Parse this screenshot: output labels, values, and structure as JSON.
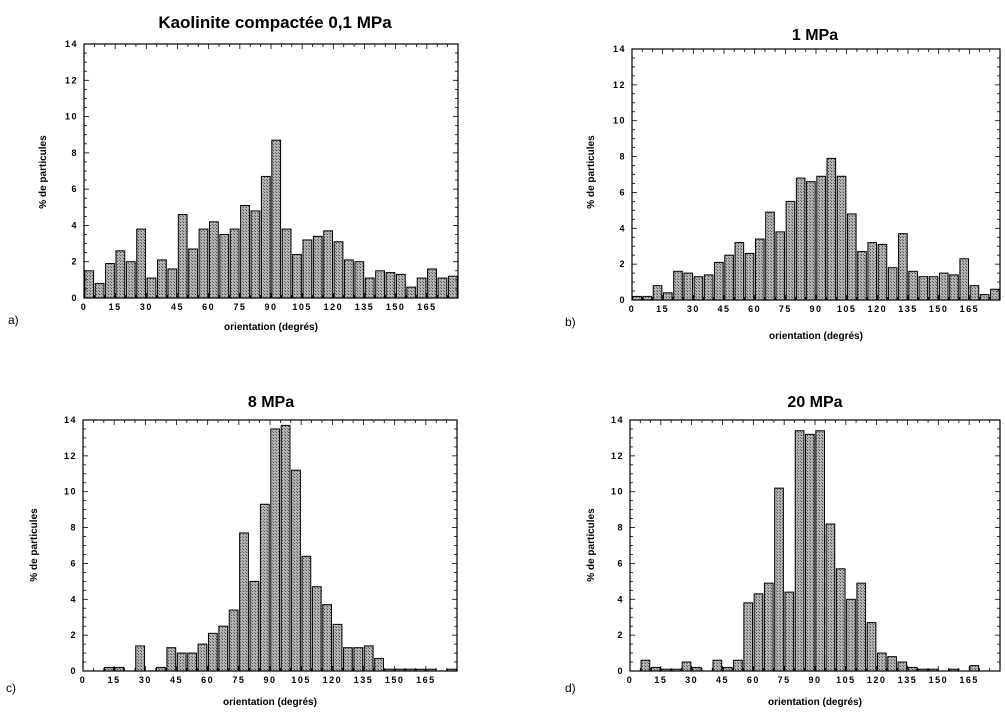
{
  "chart_data": [
    {
      "type": "bar",
      "panel_label": "a)",
      "title": "Kaolinite compactée 0,1 MPa",
      "xlabel": "orientation (degrés)",
      "ylabel": "% de particules",
      "ylim": [
        0,
        14
      ],
      "yticks": [
        "0",
        "2",
        "4",
        "6",
        "8",
        "10",
        "12",
        "14"
      ],
      "xticks": [
        "0",
        "15",
        "30",
        "45",
        "60",
        "75",
        "90",
        "105",
        "120",
        "135",
        "150",
        "165"
      ],
      "bin_width": 5,
      "x": [
        0,
        5,
        10,
        15,
        20,
        25,
        30,
        35,
        40,
        45,
        50,
        55,
        60,
        65,
        70,
        75,
        80,
        85,
        90,
        95,
        100,
        105,
        110,
        115,
        120,
        125,
        130,
        135,
        140,
        145,
        150,
        155,
        160,
        165,
        170,
        175
      ],
      "values": [
        1.5,
        0.8,
        1.9,
        2.6,
        2.0,
        3.8,
        1.1,
        2.1,
        1.6,
        4.6,
        2.7,
        3.8,
        4.2,
        3.5,
        3.8,
        5.1,
        4.8,
        6.7,
        8.7,
        3.8,
        2.4,
        3.2,
        3.4,
        3.7,
        3.1,
        2.1,
        2.0,
        1.1,
        1.5,
        1.4,
        1.3,
        0.6,
        1.1,
        1.6,
        1.1,
        1.2
      ]
    },
    {
      "type": "bar",
      "panel_label": "b)",
      "title": "1 MPa",
      "xlabel": "orientation (degrés)",
      "ylabel": "% de particules",
      "ylim": [
        0,
        14
      ],
      "yticks": [
        "0",
        "2",
        "4",
        "6",
        "8",
        "10",
        "12",
        "14"
      ],
      "xticks": [
        "0",
        "15",
        "30",
        "45",
        "60",
        "75",
        "90",
        "105",
        "120",
        "135",
        "150",
        "165"
      ],
      "bin_width": 5,
      "x": [
        0,
        5,
        10,
        15,
        20,
        25,
        30,
        35,
        40,
        45,
        50,
        55,
        60,
        65,
        70,
        75,
        80,
        85,
        90,
        95,
        100,
        105,
        110,
        115,
        120,
        125,
        130,
        135,
        140,
        145,
        150,
        155,
        160,
        165,
        170,
        175
      ],
      "values": [
        0.2,
        0.2,
        0.8,
        0.4,
        1.6,
        1.5,
        1.3,
        1.4,
        2.1,
        2.5,
        3.2,
        2.6,
        3.4,
        4.9,
        3.8,
        5.5,
        6.8,
        6.6,
        6.9,
        7.9,
        6.9,
        4.8,
        2.7,
        3.2,
        3.1,
        1.8,
        3.7,
        1.6,
        1.3,
        1.3,
        1.5,
        1.4,
        2.3,
        0.8,
        0.3,
        0.6
      ]
    },
    {
      "type": "bar",
      "panel_label": "c)",
      "title": "8 MPa",
      "xlabel": "orientation (degrés)",
      "ylabel": "% de particules",
      "ylim": [
        0,
        14
      ],
      "yticks": [
        "0",
        "2",
        "4",
        "6",
        "8",
        "10",
        "12",
        "14"
      ],
      "xticks": [
        "0",
        "15",
        "30",
        "45",
        "60",
        "75",
        "90",
        "105",
        "120",
        "135",
        "150",
        "165"
      ],
      "bin_width": 5,
      "x": [
        0,
        5,
        10,
        15,
        20,
        25,
        30,
        35,
        40,
        45,
        50,
        55,
        60,
        65,
        70,
        75,
        80,
        85,
        90,
        95,
        100,
        105,
        110,
        115,
        120,
        125,
        130,
        135,
        140,
        145,
        150,
        155,
        160,
        165,
        170,
        175
      ],
      "values": [
        0,
        0,
        0.2,
        0.2,
        0,
        1.4,
        0,
        0.2,
        1.3,
        1.0,
        1.0,
        1.5,
        2.1,
        2.5,
        3.4,
        7.7,
        5.0,
        9.3,
        13.5,
        13.7,
        11.2,
        6.4,
        4.7,
        3.7,
        2.6,
        1.3,
        1.3,
        1.4,
        0.7,
        0.1,
        0.1,
        0.1,
        0.1,
        0.1,
        0,
        0.1
      ]
    },
    {
      "type": "bar",
      "panel_label": "d)",
      "title": "20 MPa",
      "xlabel": "orientation (degrés)",
      "ylabel": "% de particules",
      "ylim": [
        0,
        14
      ],
      "yticks": [
        "0",
        "2",
        "4",
        "6",
        "8",
        "10",
        "12",
        "14"
      ],
      "xticks": [
        "0",
        "15",
        "30",
        "45",
        "60",
        "75",
        "90",
        "105",
        "120",
        "135",
        "150",
        "165"
      ],
      "bin_width": 5,
      "x": [
        0,
        5,
        10,
        15,
        20,
        25,
        30,
        35,
        40,
        45,
        50,
        55,
        60,
        65,
        70,
        75,
        80,
        85,
        90,
        95,
        100,
        105,
        110,
        115,
        120,
        125,
        130,
        135,
        140,
        145,
        150,
        155,
        160,
        165,
        170,
        175
      ],
      "values": [
        0,
        0.6,
        0.2,
        0.1,
        0.1,
        0.5,
        0.2,
        0,
        0.6,
        0.2,
        0.6,
        3.8,
        4.3,
        4.9,
        10.2,
        4.4,
        13.4,
        13.2,
        13.4,
        8.2,
        5.7,
        4.0,
        4.9,
        2.7,
        1.0,
        0.8,
        0.5,
        0.2,
        0.1,
        0.1,
        0,
        0.1,
        0,
        0.3,
        0,
        0
      ]
    }
  ]
}
